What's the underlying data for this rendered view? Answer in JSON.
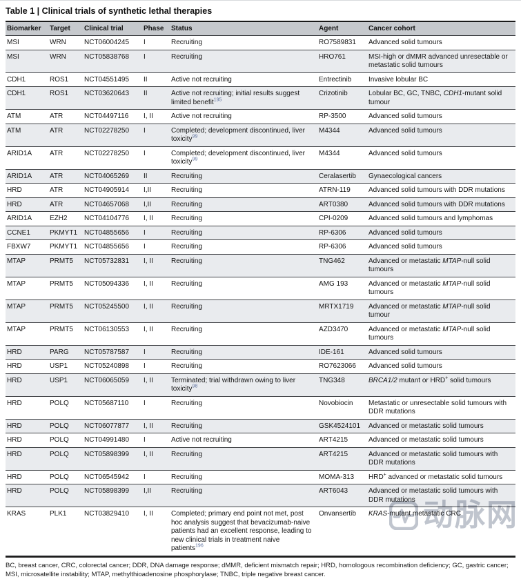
{
  "title": "Table 1 | Clinical trials of synthetic lethal therapies",
  "table": {
    "columns": [
      "Biomarker",
      "Target",
      "Clinical trial",
      "Phase",
      "Status",
      "Agent",
      "Cancer cohort"
    ],
    "rows": [
      {
        "biomarker": "MSI",
        "target": "WRN",
        "trial": "NCT06004245",
        "phase": "I",
        "status": "Recruiting",
        "agent": "RO7589831",
        "cohort": "Advanced solid tumours"
      },
      {
        "biomarker": "MSI",
        "target": "WRN",
        "trial": "NCT05838768",
        "phase": "I",
        "status": "Recruiting",
        "agent": "HRO761",
        "cohort": "MSI-high or dMMR advanced unresectable or metastatic solid tumours"
      },
      {
        "biomarker": "CDH1",
        "target": "ROS1",
        "trial": "NCT04551495",
        "phase": "II",
        "status": "Active not recruiting",
        "agent": "Entrectinib",
        "cohort": "Invasive lobular BC"
      },
      {
        "biomarker": "CDH1",
        "target": "ROS1",
        "trial": "NCT03620643",
        "phase": "II",
        "status": "Active not recruiting; initial results suggest limited benefit[195]",
        "agent": "Crizotinib",
        "cohort": "Lobular BC, GC, TNBC, *CDH1*-mutant solid tumour"
      },
      {
        "biomarker": "ATM",
        "target": "ATR",
        "trial": "NCT04497116",
        "phase": "I, II",
        "status": "Active not recruiting",
        "agent": "RP-3500",
        "cohort": "Advanced solid tumours"
      },
      {
        "biomarker": "ATM",
        "target": "ATR",
        "trial": "NCT02278250",
        "phase": "I",
        "status": "Completed; development discontinued, liver toxicity[99]",
        "agent": "M4344",
        "cohort": "Advanced solid tumours"
      },
      {
        "biomarker": "ARID1A",
        "target": "ATR",
        "trial": "NCT02278250",
        "phase": "I",
        "status": "Completed; development discontinued, liver toxicity[99]",
        "agent": "M4344",
        "cohort": "Advanced solid tumours"
      },
      {
        "biomarker": "ARID1A",
        "target": "ATR",
        "trial": "NCT04065269",
        "phase": "II",
        "status": "Recruiting",
        "agent": "Ceralasertib",
        "cohort": "Gynaecological cancers"
      },
      {
        "biomarker": "HRD",
        "target": "ATR",
        "trial": "NCT04905914",
        "phase": "I,II",
        "status": "Recruiting",
        "agent": "ATRN-119",
        "cohort": "Advanced solid tumours with DDR mutations"
      },
      {
        "biomarker": "HRD",
        "target": "ATR",
        "trial": "NCT04657068",
        "phase": "I,II",
        "status": "Recruiting",
        "agent": "ART0380",
        "cohort": "Advanced solid tumours with DDR mutations"
      },
      {
        "biomarker": "ARID1A",
        "target": "EZH2",
        "trial": "NCT04104776",
        "phase": "I, II",
        "status": "Recruiting",
        "agent": "CPI-0209",
        "cohort": "Advanced solid tumours and lymphomas"
      },
      {
        "biomarker": "CCNE1",
        "target": "PKMYT1",
        "trial": "NCT04855656",
        "phase": "I",
        "status": "Recruiting",
        "agent": "RP-6306",
        "cohort": "Advanced solid tumours"
      },
      {
        "biomarker": "FBXW7",
        "target": "PKMYT1",
        "trial": "NCT04855656",
        "phase": "I",
        "status": "Recruiting",
        "agent": "RP-6306",
        "cohort": "Advanced solid tumours"
      },
      {
        "biomarker": "MTAP",
        "target": "PRMT5",
        "trial": "NCT05732831",
        "phase": "I, II",
        "status": "Recruiting",
        "agent": "TNG462",
        "cohort": "Advanced or metastatic *MTAP*-null solid tumours"
      },
      {
        "biomarker": "MTAP",
        "target": "PRMT5",
        "trial": "NCT05094336",
        "phase": "I, II",
        "status": "Recruiting",
        "agent": "AMG 193",
        "cohort": "Advanced or metastatic *MTAP*-null solid tumours"
      },
      {
        "biomarker": "MTAP",
        "target": "PRMT5",
        "trial": "NCT05245500",
        "phase": "I, II",
        "status": "Recruiting",
        "agent": "MRTX1719",
        "cohort": "Advanced or metastatic *MTAP*-null solid tumour"
      },
      {
        "biomarker": "MTAP",
        "target": "PRMT5",
        "trial": "NCT06130553",
        "phase": "I, II",
        "status": "Recruiting",
        "agent": "AZD3470",
        "cohort": "Advanced or metastatic *MTAP*-null solid tumours"
      },
      {
        "biomarker": "HRD",
        "target": "PARG",
        "trial": "NCT05787587",
        "phase": "I",
        "status": "Recruiting",
        "agent": "IDE-161",
        "cohort": "Advanced solid tumours"
      },
      {
        "biomarker": "HRD",
        "target": "USP1",
        "trial": "NCT05240898",
        "phase": "I",
        "status": "Recruiting",
        "agent": "RO7623066",
        "cohort": "Advanced solid tumours"
      },
      {
        "biomarker": "HRD",
        "target": "USP1",
        "trial": "NCT06065059",
        "phase": "I, II",
        "status": "Terminated; trial withdrawn owing to liver toxicity[98]",
        "agent": "TNG348",
        "cohort": "*BRCA1/2* mutant or HRD[+] solid tumours"
      },
      {
        "biomarker": "HRD",
        "target": "POLQ",
        "trial": "NCT05687110",
        "phase": "I",
        "status": "Recruiting",
        "agent": "Novobiocin",
        "cohort": "Metastatic or unresectable solid tumours with DDR mutations"
      },
      {
        "biomarker": "HRD",
        "target": "POLQ",
        "trial": "NCT06077877",
        "phase": "I, II",
        "status": "Recruiting",
        "agent": "GSK4524101",
        "cohort": "Advanced or metastatic solid tumours"
      },
      {
        "biomarker": "HRD",
        "target": "POLQ",
        "trial": "NCT04991480",
        "phase": "I",
        "status": "Active not recruiting",
        "agent": "ART4215",
        "cohort": "Advanced or metastatic solid tumours"
      },
      {
        "biomarker": "HRD",
        "target": "POLQ",
        "trial": "NCT05898399",
        "phase": "I, II",
        "status": "Recruiting",
        "agent": "ART4215",
        "cohort": "Advanced or metastatic solid tumours with DDR mutations"
      },
      {
        "biomarker": "HRD",
        "target": "POLQ",
        "trial": "NCT06545942",
        "phase": "I",
        "status": "Recruiting",
        "agent": "MOMA-313",
        "cohort": "HRD[+] advanced or metastatic solid tumours"
      },
      {
        "biomarker": "HRD",
        "target": "POLQ",
        "trial": "NCT05898399",
        "phase": "I,II",
        "status": "Recruiting",
        "agent": "ART6043",
        "cohort": "Advanced or metastatic solid tumours with DDR mutations"
      },
      {
        "biomarker": "KRAS",
        "target": "PLK1",
        "trial": "NCT03829410",
        "phase": "I, II",
        "status": "Completed; primary end point not met, post hoc analysis suggest that bevacizumab-naive patients had an excellent response, leading to new clinical trials in treatment naive patients[196]",
        "agent": "Onvansertib",
        "cohort": "*KRAS*-mutant metastatic CRC"
      }
    ]
  },
  "footnote": "BC, breast cancer, CRC, colorectal cancer; DDR, DNA damage response; dMMR, deficient mismatch repair; HRD, homologous recombination deficiency; GC, gastric cancer; MSI, microsatellite instability; MTAP, methylthioadenosine phosphorylase; TNBC, triple negative breast cancer.",
  "watermark": {
    "text": "动脉网",
    "logo": "vcbeat-pulse-logo"
  },
  "colors": {
    "header_bg": "#c6c9cd",
    "row_alt_bg": "#e9ebee",
    "rule_dark": "#1a1a1a",
    "rule_row": "#3f4145",
    "reference_blue": "#5f72a0",
    "watermark_gray": "#b9bfc9"
  }
}
